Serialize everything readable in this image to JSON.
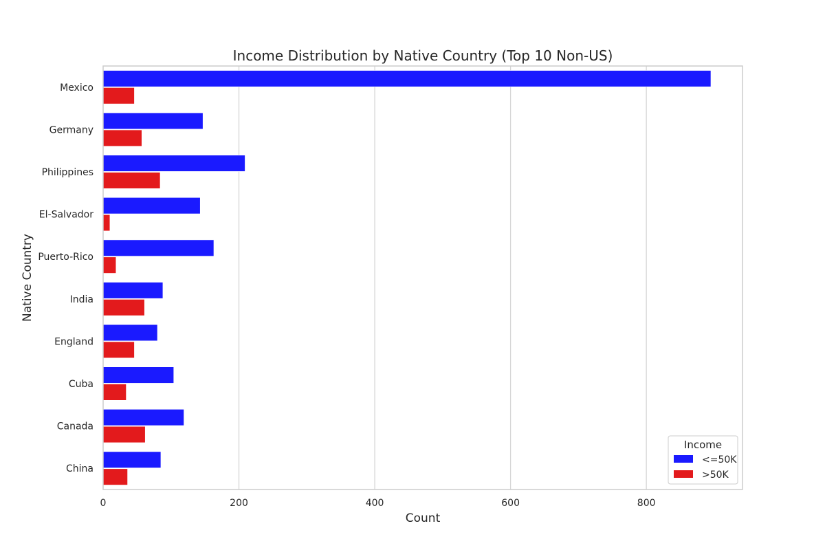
{
  "chart_data": {
    "type": "bar",
    "orientation": "horizontal",
    "title": "Income Distribution by Native Country (Top 10 Non-US)",
    "xlabel": "Count",
    "ylabel": "Native Country",
    "xlim": [
      0,
      940
    ],
    "xticks": [
      0,
      200,
      400,
      600,
      800
    ],
    "grid": true,
    "categories": [
      "Mexico",
      "Germany",
      "Philippines",
      "El-Salvador",
      "Puerto-Rico",
      "India",
      "England",
      "Cuba",
      "Canada",
      "China"
    ],
    "series": [
      {
        "name": "<=50K",
        "color": "#1a1aff",
        "values": [
          895,
          147,
          209,
          143,
          163,
          88,
          80,
          104,
          119,
          85
        ]
      },
      {
        "name": ">50K",
        "color": "#e31a1c",
        "values": [
          46,
          57,
          84,
          10,
          19,
          61,
          46,
          34,
          62,
          36
        ]
      }
    ],
    "legend": {
      "title": "Income",
      "position": "lower-right"
    }
  }
}
